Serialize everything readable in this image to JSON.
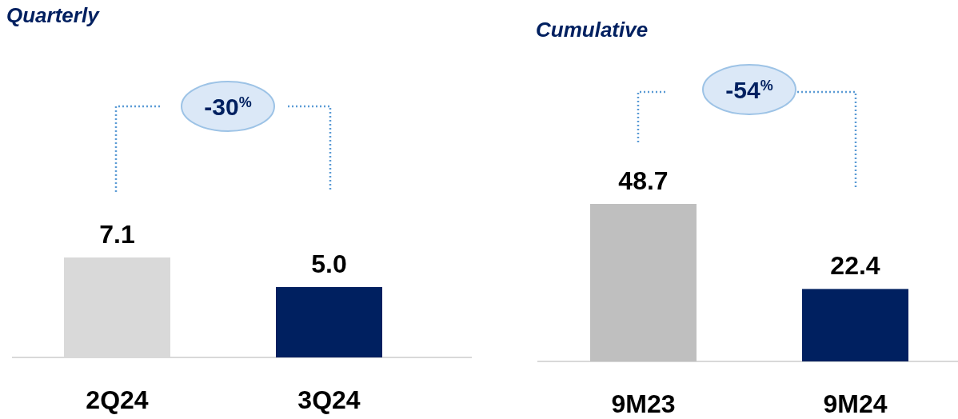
{
  "chart_data": [
    {
      "type": "bar",
      "title": "Quarterly",
      "categories": [
        "2Q24",
        "3Q24"
      ],
      "values": [
        7.1,
        5.0
      ],
      "value_labels": [
        "7.1",
        "5.0"
      ],
      "colors": [
        "#d9d9d9",
        "#002060"
      ],
      "annotations": [
        "-30$^{%}$"
      ]
    },
    {
      "type": "bar",
      "title": "Cumulative",
      "categories": [
        "9M23",
        "9M24"
      ],
      "values": [
        48.7,
        22.4
      ],
      "value_labels": [
        "48.7",
        "22.4"
      ],
      "colors": [
        "#bfbfbf",
        "#002060"
      ],
      "annotations": [
        "-54$^{%}$"
      ]
    }
  ]
}
